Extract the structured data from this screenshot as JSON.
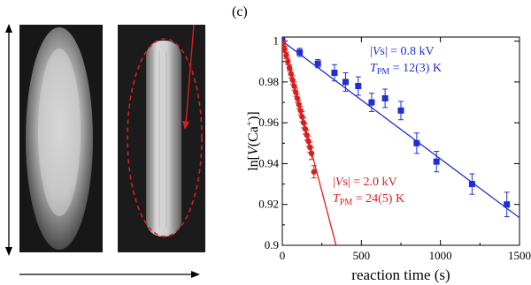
{
  "figure": {
    "panel_label": "(c)",
    "left_panels": [
      {
        "name": "panel-a-image",
        "shape": "ellipse",
        "outline": "none"
      },
      {
        "name": "panel-b-image",
        "shape": "bar",
        "outline": "dashed-red"
      }
    ],
    "colors": {
      "blue": "#1f2fd0",
      "red": "#d81e1e",
      "axis": "#000000"
    }
  },
  "chart_data": {
    "type": "scatter",
    "xlabel": "reaction time (s)",
    "ylabel": "ln[V(Ca+)]",
    "xlim": [
      0,
      1500
    ],
    "ylim": [
      0.9,
      1.002
    ],
    "x_ticks": [
      0,
      500,
      1000,
      1500
    ],
    "y_ticks": [
      0.9,
      0.92,
      0.94,
      0.96,
      0.98,
      1
    ],
    "y_tick_labels": [
      "0.9",
      "0.92",
      "0.94",
      "0.96",
      "0.98",
      "1"
    ],
    "series": [
      {
        "color": "#1f2fd0",
        "marker": "square",
        "annotation": {
          "line1": "|Vs| = 0.8 kV",
          "line2": "T_PM = 12(3) K"
        },
        "fit": {
          "x": [
            0,
            1500
          ],
          "y": [
            1.0,
            0.9135
          ]
        },
        "points": [
          {
            "x": 0,
            "y": 1.0,
            "err": 0.0015
          },
          {
            "x": 110,
            "y": 0.9945,
            "err": 0.002
          },
          {
            "x": 225,
            "y": 0.989,
            "err": 0.002
          },
          {
            "x": 330,
            "y": 0.9845,
            "err": 0.004
          },
          {
            "x": 400,
            "y": 0.98,
            "err": 0.0045
          },
          {
            "x": 480,
            "y": 0.978,
            "err": 0.0045
          },
          {
            "x": 565,
            "y": 0.97,
            "err": 0.0045
          },
          {
            "x": 650,
            "y": 0.972,
            "err": 0.0045
          },
          {
            "x": 750,
            "y": 0.966,
            "err": 0.0045
          },
          {
            "x": 850,
            "y": 0.95,
            "err": 0.005
          },
          {
            "x": 975,
            "y": 0.941,
            "err": 0.005
          },
          {
            "x": 1200,
            "y": 0.93,
            "err": 0.005
          },
          {
            "x": 1420,
            "y": 0.92,
            "err": 0.006
          }
        ]
      },
      {
        "color": "#d81e1e",
        "marker": "circle",
        "annotation": {
          "line1": "|Vs| = 2.0 kV",
          "line2": "T_PM = 24(5) K"
        },
        "fit": {
          "x": [
            0,
            340
          ],
          "y": [
            1.0,
            0.9
          ]
        },
        "points": [
          {
            "x": 5,
            "y": 0.999,
            "err": 0.001
          },
          {
            "x": 15,
            "y": 0.996,
            "err": 0.0015
          },
          {
            "x": 25,
            "y": 0.993,
            "err": 0.0015
          },
          {
            "x": 35,
            "y": 0.99,
            "err": 0.0015
          },
          {
            "x": 45,
            "y": 0.987,
            "err": 0.0015
          },
          {
            "x": 55,
            "y": 0.984,
            "err": 0.002
          },
          {
            "x": 65,
            "y": 0.981,
            "err": 0.002
          },
          {
            "x": 75,
            "y": 0.978,
            "err": 0.002
          },
          {
            "x": 85,
            "y": 0.975,
            "err": 0.002
          },
          {
            "x": 95,
            "y": 0.972,
            "err": 0.002
          },
          {
            "x": 105,
            "y": 0.969,
            "err": 0.002
          },
          {
            "x": 115,
            "y": 0.966,
            "err": 0.002
          },
          {
            "x": 125,
            "y": 0.963,
            "err": 0.0025
          },
          {
            "x": 135,
            "y": 0.96,
            "err": 0.0025
          },
          {
            "x": 145,
            "y": 0.957,
            "err": 0.0025
          },
          {
            "x": 155,
            "y": 0.954,
            "err": 0.0025
          },
          {
            "x": 165,
            "y": 0.951,
            "err": 0.0025
          },
          {
            "x": 175,
            "y": 0.948,
            "err": 0.0025
          },
          {
            "x": 185,
            "y": 0.945,
            "err": 0.003
          },
          {
            "x": 200,
            "y": 0.936,
            "err": 0.003
          }
        ]
      }
    ]
  }
}
